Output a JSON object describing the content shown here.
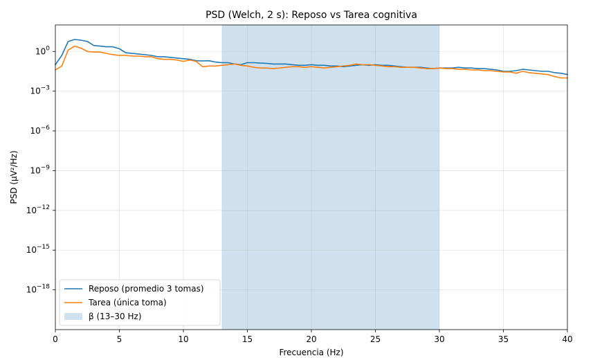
{
  "chart_data": {
    "type": "line",
    "title": "PSD (Welch, 2 s): Reposo vs Tarea cognitiva",
    "xlabel": "Frecuencia (Hz)",
    "ylabel": "PSD (µV²/Hz)",
    "xlim": [
      0,
      40
    ],
    "ylim_log10": [
      -21,
      2
    ],
    "y_scale": "log",
    "grid": true,
    "legend_position": "lower-left",
    "x_ticks": [
      0,
      5,
      10,
      15,
      20,
      25,
      30,
      35,
      40
    ],
    "x_tick_labels": [
      "0",
      "5",
      "10",
      "15",
      "20",
      "25",
      "30",
      "35",
      "40"
    ],
    "y_ticks_exp": [
      0,
      -3,
      -6,
      -9,
      -12,
      -15,
      -18
    ],
    "y_tick_base": "10",
    "y_tick_exponents": [
      "0",
      "−3",
      "−6",
      "−9",
      "−12",
      "−15",
      "−18"
    ],
    "band": {
      "name": "β (13–30 Hz)",
      "x0": 13,
      "x1": 30,
      "color": "#cfe1ee"
    },
    "series": [
      {
        "name": "Reposo (promedio 3 tomas)",
        "color": "#1f77b4",
        "x": [
          0,
          0.5,
          1,
          1.5,
          2,
          2.5,
          3,
          3.5,
          4,
          4.5,
          5,
          5.5,
          6,
          6.5,
          7,
          7.5,
          8,
          8.5,
          9,
          9.5,
          10,
          10.5,
          11,
          11.5,
          12,
          12.5,
          13,
          13.5,
          14,
          14.5,
          15,
          15.5,
          16,
          16.5,
          17,
          17.5,
          18,
          18.5,
          19,
          19.5,
          20,
          20.5,
          21,
          21.5,
          22,
          22.5,
          23,
          23.5,
          24,
          24.5,
          25,
          25.5,
          26,
          26.5,
          27,
          27.5,
          28,
          28.5,
          29,
          29.5,
          30,
          30.5,
          31,
          31.5,
          32,
          32.5,
          33,
          33.5,
          34,
          34.5,
          35,
          35.5,
          36,
          36.5,
          37,
          37.5,
          38,
          38.5,
          39,
          39.5,
          40
        ],
        "y_log10": [
          -1.0,
          -0.3,
          0.75,
          0.9,
          0.85,
          0.75,
          0.45,
          0.4,
          0.35,
          0.35,
          0.2,
          -0.1,
          -0.15,
          -0.2,
          -0.25,
          -0.3,
          -0.4,
          -0.4,
          -0.45,
          -0.5,
          -0.55,
          -0.6,
          -0.7,
          -0.72,
          -0.7,
          -0.8,
          -0.85,
          -0.85,
          -0.95,
          -1.0,
          -0.85,
          -0.85,
          -0.88,
          -0.9,
          -0.95,
          -0.95,
          -0.95,
          -1.0,
          -1.05,
          -1.05,
          -1.0,
          -1.05,
          -1.05,
          -1.1,
          -1.1,
          -1.15,
          -1.1,
          -1.05,
          -1.0,
          -1.05,
          -1.0,
          -1.05,
          -1.05,
          -1.1,
          -1.15,
          -1.2,
          -1.2,
          -1.2,
          -1.25,
          -1.3,
          -1.25,
          -1.25,
          -1.25,
          -1.2,
          -1.25,
          -1.25,
          -1.3,
          -1.3,
          -1.35,
          -1.4,
          -1.5,
          -1.5,
          -1.45,
          -1.35,
          -1.4,
          -1.45,
          -1.5,
          -1.5,
          -1.6,
          -1.65,
          -1.75
        ]
      },
      {
        "name": "Tarea (única toma)",
        "color": "#ff7f0e",
        "x": [
          0,
          0.5,
          1,
          1.5,
          2,
          2.5,
          3,
          3.5,
          4,
          4.5,
          5,
          5.5,
          6,
          6.5,
          7,
          7.5,
          8,
          8.5,
          9,
          9.5,
          10,
          10.5,
          11,
          11.5,
          12,
          12.5,
          13,
          13.5,
          14,
          14.5,
          15,
          15.5,
          16,
          16.5,
          17,
          17.5,
          18,
          18.5,
          19,
          19.5,
          20,
          20.5,
          21,
          21.5,
          22,
          22.5,
          23,
          23.5,
          24,
          24.5,
          25,
          25.5,
          26,
          26.5,
          27,
          27.5,
          28,
          28.5,
          29,
          29.5,
          30,
          30.5,
          31,
          31.5,
          32,
          32.5,
          33,
          33.5,
          34,
          34.5,
          35,
          35.5,
          36,
          36.5,
          37,
          37.5,
          38,
          38.5,
          39,
          39.5,
          40
        ],
        "y_log10": [
          -1.4,
          -1.1,
          0.1,
          0.4,
          0.25,
          0.0,
          -0.05,
          -0.05,
          -0.15,
          -0.25,
          -0.3,
          -0.3,
          -0.35,
          -0.35,
          -0.4,
          -0.4,
          -0.55,
          -0.6,
          -0.6,
          -0.65,
          -0.75,
          -0.65,
          -0.75,
          -1.15,
          -1.1,
          -1.1,
          -1.05,
          -1.0,
          -0.95,
          -1.05,
          -1.1,
          -1.2,
          -1.25,
          -1.25,
          -1.3,
          -1.25,
          -1.2,
          -1.15,
          -1.15,
          -1.2,
          -1.15,
          -1.2,
          -1.25,
          -1.2,
          -1.15,
          -1.1,
          -1.05,
          -0.95,
          -1.0,
          -1.0,
          -1.05,
          -1.1,
          -1.15,
          -1.15,
          -1.2,
          -1.2,
          -1.2,
          -1.25,
          -1.3,
          -1.3,
          -1.25,
          -1.3,
          -1.3,
          -1.35,
          -1.35,
          -1.4,
          -1.4,
          -1.45,
          -1.45,
          -1.5,
          -1.55,
          -1.55,
          -1.65,
          -1.5,
          -1.6,
          -1.65,
          -1.7,
          -1.75,
          -1.9,
          -2.0,
          -2.0
        ]
      }
    ]
  }
}
